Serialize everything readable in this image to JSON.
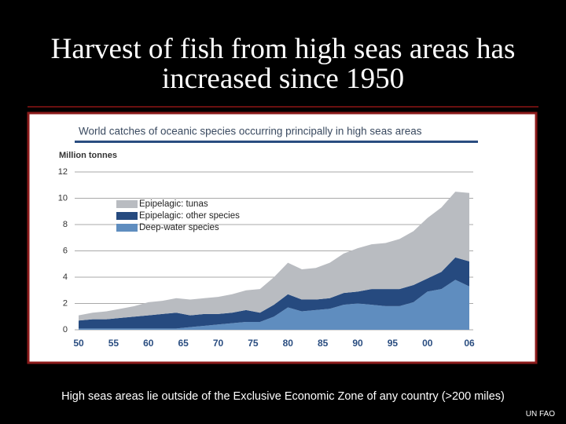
{
  "slide": {
    "title": "Harvest of fish from high seas areas has increased since 1950",
    "footnote": "High seas areas lie outside of the Exclusive Economic Zone of any country (>200 miles)",
    "source": "UN FAO"
  },
  "chart_data": {
    "type": "stacked_area",
    "title": "World catches of oceanic species occurring principally in high seas areas",
    "ylabel": "Million tonnes",
    "x": [
      1950,
      1952,
      1954,
      1956,
      1958,
      1960,
      1962,
      1964,
      1966,
      1968,
      1970,
      1972,
      1974,
      1976,
      1978,
      1980,
      1982,
      1984,
      1986,
      1988,
      1990,
      1992,
      1994,
      1996,
      1998,
      2000,
      2002,
      2004,
      2006
    ],
    "series": [
      {
        "name": "Deep-water species",
        "color": "#5f8dbf",
        "values": [
          0.1,
          0.1,
          0.1,
          0.1,
          0.1,
          0.1,
          0.1,
          0.1,
          0.2,
          0.3,
          0.4,
          0.5,
          0.6,
          0.6,
          1.0,
          1.7,
          1.4,
          1.5,
          1.6,
          1.9,
          2.0,
          1.9,
          1.8,
          1.8,
          2.1,
          2.9,
          3.1,
          3.8,
          3.3
        ]
      },
      {
        "name": "Epipelagic: other species",
        "color": "#264a7f",
        "values": [
          0.6,
          0.7,
          0.7,
          0.8,
          0.9,
          1.0,
          1.1,
          1.2,
          0.9,
          0.9,
          0.8,
          0.8,
          0.9,
          0.7,
          0.9,
          1.0,
          0.9,
          0.8,
          0.8,
          0.9,
          0.9,
          1.2,
          1.3,
          1.3,
          1.3,
          1.0,
          1.3,
          1.7,
          1.9
        ]
      },
      {
        "name": "Epipelagic: tunas",
        "color": "#b9bcc1",
        "values": [
          0.4,
          0.5,
          0.6,
          0.7,
          0.8,
          1.0,
          1.0,
          1.1,
          1.2,
          1.2,
          1.3,
          1.4,
          1.5,
          1.8,
          2.1,
          2.4,
          2.3,
          2.4,
          2.7,
          3.0,
          3.3,
          3.4,
          3.5,
          3.8,
          4.1,
          4.6,
          4.9,
          5.0,
          5.2
        ]
      }
    ],
    "xlim": [
      1950,
      2006
    ],
    "xticks": [
      {
        "value": 1950,
        "label": "50"
      },
      {
        "value": 1955,
        "label": "55"
      },
      {
        "value": 1960,
        "label": "60"
      },
      {
        "value": 1965,
        "label": "65"
      },
      {
        "value": 1970,
        "label": "70"
      },
      {
        "value": 1975,
        "label": "75"
      },
      {
        "value": 1980,
        "label": "80"
      },
      {
        "value": 1985,
        "label": "85"
      },
      {
        "value": 1990,
        "label": "90"
      },
      {
        "value": 1995,
        "label": "95"
      },
      {
        "value": 2000,
        "label": "00"
      },
      {
        "value": 2006,
        "label": "06"
      }
    ],
    "ylim": [
      0,
      12
    ],
    "yticks": [
      0,
      2,
      4,
      6,
      8,
      10,
      12
    ],
    "grid": true,
    "legend": "upper left"
  }
}
